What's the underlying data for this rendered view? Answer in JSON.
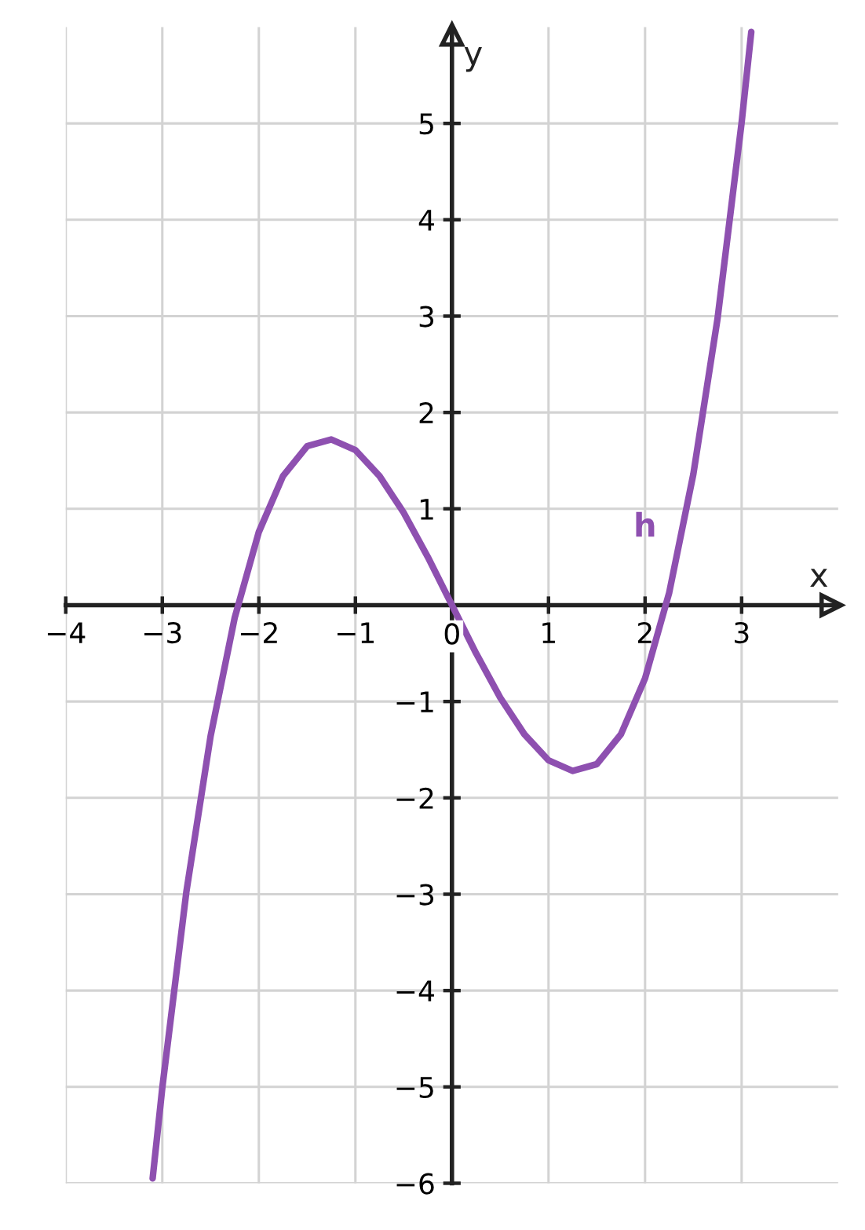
{
  "chart_data": {
    "type": "line",
    "xlabel": "x",
    "ylabel": "y",
    "x": [
      -3.1,
      -3.0,
      -2.75,
      -2.5,
      -2.25,
      -2.0,
      -1.75,
      -1.5,
      -1.25,
      -1.0,
      -0.75,
      -0.5,
      -0.25,
      0,
      0.25,
      0.5,
      0.75,
      1.0,
      1.25,
      1.5,
      1.75,
      2.0,
      2.25,
      2.5,
      2.75,
      3.0,
      3.1
    ],
    "series": [
      {
        "color": "#8e50b0",
        "values": [
          -5.95,
          -5.01,
          -2.97,
          -1.36,
          -0.13,
          0.76,
          1.34,
          1.65,
          1.72,
          1.61,
          1.34,
          0.96,
          0.5,
          0,
          -0.5,
          -0.96,
          -1.34,
          -1.61,
          -1.72,
          -1.65,
          -1.34,
          -0.76,
          0.13,
          1.36,
          2.97,
          5.01,
          5.95
        ]
      }
    ],
    "annotations": [
      "h"
    ],
    "xlim": [
      -4,
      4
    ],
    "ylim": [
      -6,
      6
    ],
    "xticks": [
      {
        "value": -4,
        "label": "−4"
      },
      {
        "value": -3,
        "label": "−3"
      },
      {
        "value": -2,
        "label": "−2"
      },
      {
        "value": -1,
        "label": "−1"
      },
      {
        "value": 0,
        "label": "0"
      },
      1,
      2,
      3
    ],
    "yticks": [
      {
        "value": -6,
        "label": "−6"
      },
      {
        "value": -5,
        "label": "−5"
      },
      {
        "value": -4,
        "label": "−4"
      },
      {
        "value": -3,
        "label": "−3"
      },
      {
        "value": -2,
        "label": "−2"
      },
      {
        "value": -1,
        "label": "−1"
      },
      {
        "value": 0,
        "label": null
      },
      1,
      2,
      3,
      4,
      5
    ],
    "grid": true,
    "marker": "none",
    "line_style": "solid"
  }
}
